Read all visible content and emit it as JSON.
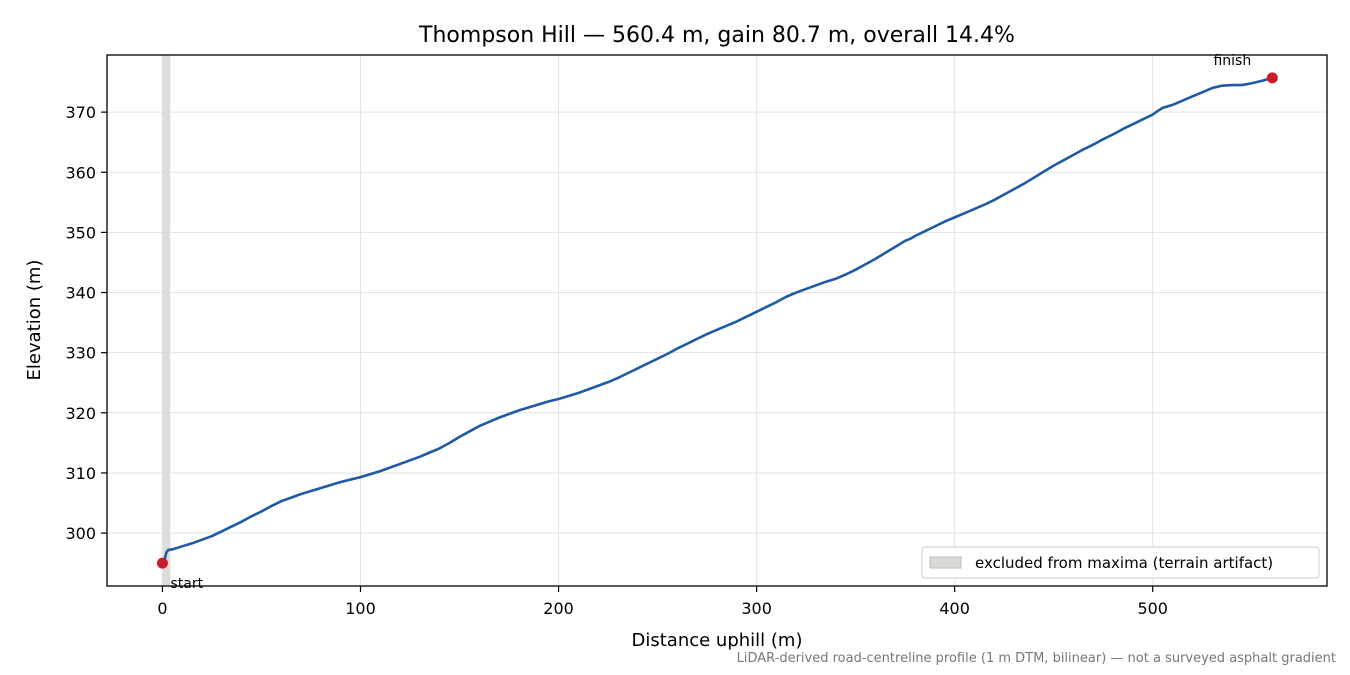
{
  "chart_data": {
    "type": "line",
    "title": "Thompson Hill — 560.4 m, gain 80.7 m, overall 14.4%",
    "xlabel": "Distance uphill (m)",
    "ylabel": "Elevation (m)",
    "xlim": [
      -28,
      588
    ],
    "ylim": [
      291.2,
      379.5
    ],
    "x_ticks": [
      0,
      100,
      200,
      300,
      400,
      500
    ],
    "y_ticks": [
      300,
      310,
      320,
      330,
      340,
      350,
      360,
      370
    ],
    "grid": true,
    "legend_position": "lower-right",
    "excluded_band": {
      "x": [
        0,
        4
      ],
      "label": "excluded from maxima (terrain artifact)",
      "color": "#d9d9d6"
    },
    "series": [
      {
        "color": "#1f5aa6",
        "points": [
          [
            0,
            295.0
          ],
          [
            1,
            295.5
          ],
          [
            2,
            296.8
          ],
          [
            3,
            297.2
          ],
          [
            5,
            297.3
          ],
          [
            10,
            297.8
          ],
          [
            15,
            298.3
          ],
          [
            20,
            298.9
          ],
          [
            25,
            299.5
          ],
          [
            30,
            300.3
          ],
          [
            35,
            301.1
          ],
          [
            40,
            301.9
          ],
          [
            45,
            302.8
          ],
          [
            50,
            303.6
          ],
          [
            55,
            304.5
          ],
          [
            60,
            305.3
          ],
          [
            65,
            305.9
          ],
          [
            70,
            306.5
          ],
          [
            75,
            307.0
          ],
          [
            80,
            307.5
          ],
          [
            85,
            308.0
          ],
          [
            90,
            308.5
          ],
          [
            95,
            308.9
          ],
          [
            100,
            309.3
          ],
          [
            105,
            309.8
          ],
          [
            110,
            310.3
          ],
          [
            115,
            310.9
          ],
          [
            120,
            311.5
          ],
          [
            125,
            312.1
          ],
          [
            130,
            312.7
          ],
          [
            135,
            313.4
          ],
          [
            140,
            314.1
          ],
          [
            145,
            315.0
          ],
          [
            150,
            316.0
          ],
          [
            155,
            316.9
          ],
          [
            160,
            317.8
          ],
          [
            165,
            318.5
          ],
          [
            170,
            319.2
          ],
          [
            175,
            319.8
          ],
          [
            180,
            320.4
          ],
          [
            185,
            320.9
          ],
          [
            190,
            321.4
          ],
          [
            195,
            321.9
          ],
          [
            200,
            322.3
          ],
          [
            205,
            322.8
          ],
          [
            210,
            323.3
          ],
          [
            215,
            323.9
          ],
          [
            220,
            324.5
          ],
          [
            225,
            325.1
          ],
          [
            230,
            325.8
          ],
          [
            235,
            326.6
          ],
          [
            240,
            327.4
          ],
          [
            245,
            328.2
          ],
          [
            250,
            329.0
          ],
          [
            255,
            329.8
          ],
          [
            260,
            330.7
          ],
          [
            265,
            331.5
          ],
          [
            270,
            332.3
          ],
          [
            275,
            333.1
          ],
          [
            280,
            333.8
          ],
          [
            285,
            334.5
          ],
          [
            290,
            335.2
          ],
          [
            295,
            336.0
          ],
          [
            300,
            336.8
          ],
          [
            305,
            337.6
          ],
          [
            310,
            338.4
          ],
          [
            315,
            339.3
          ],
          [
            320,
            340.0
          ],
          [
            325,
            340.6
          ],
          [
            330,
            341.2
          ],
          [
            335,
            341.8
          ],
          [
            340,
            342.3
          ],
          [
            345,
            343.0
          ],
          [
            350,
            343.8
          ],
          [
            355,
            344.7
          ],
          [
            360,
            345.6
          ],
          [
            365,
            346.6
          ],
          [
            370,
            347.6
          ],
          [
            375,
            348.6
          ],
          [
            378,
            349.0
          ],
          [
            380,
            349.4
          ],
          [
            385,
            350.2
          ],
          [
            390,
            351.0
          ],
          [
            395,
            351.8
          ],
          [
            400,
            352.5
          ],
          [
            405,
            353.2
          ],
          [
            410,
            353.9
          ],
          [
            415,
            354.6
          ],
          [
            420,
            355.4
          ],
          [
            425,
            356.3
          ],
          [
            430,
            357.2
          ],
          [
            435,
            358.1
          ],
          [
            440,
            359.1
          ],
          [
            445,
            360.1
          ],
          [
            450,
            361.1
          ],
          [
            455,
            362.0
          ],
          [
            460,
            362.9
          ],
          [
            465,
            363.8
          ],
          [
            470,
            364.6
          ],
          [
            475,
            365.5
          ],
          [
            480,
            366.3
          ],
          [
            485,
            367.2
          ],
          [
            490,
            368.0
          ],
          [
            495,
            368.8
          ],
          [
            500,
            369.6
          ],
          [
            503,
            370.3
          ],
          [
            505,
            370.7
          ],
          [
            510,
            371.2
          ],
          [
            515,
            371.9
          ],
          [
            520,
            372.6
          ],
          [
            525,
            373.3
          ],
          [
            530,
            374.0
          ],
          [
            535,
            374.4
          ],
          [
            540,
            374.5
          ],
          [
            545,
            374.5
          ],
          [
            550,
            374.8
          ],
          [
            555,
            375.2
          ],
          [
            560.4,
            375.7
          ]
        ]
      }
    ],
    "markers": [
      {
        "x": 0,
        "y": 295.0,
        "label": "start",
        "color": "#c81e2b"
      },
      {
        "x": 560.4,
        "y": 375.7,
        "label": "finish",
        "color": "#c81e2b"
      }
    ],
    "footnote": "LiDAR-derived road-centreline profile (1 m DTM, bilinear) — not a surveyed asphalt gradient"
  }
}
